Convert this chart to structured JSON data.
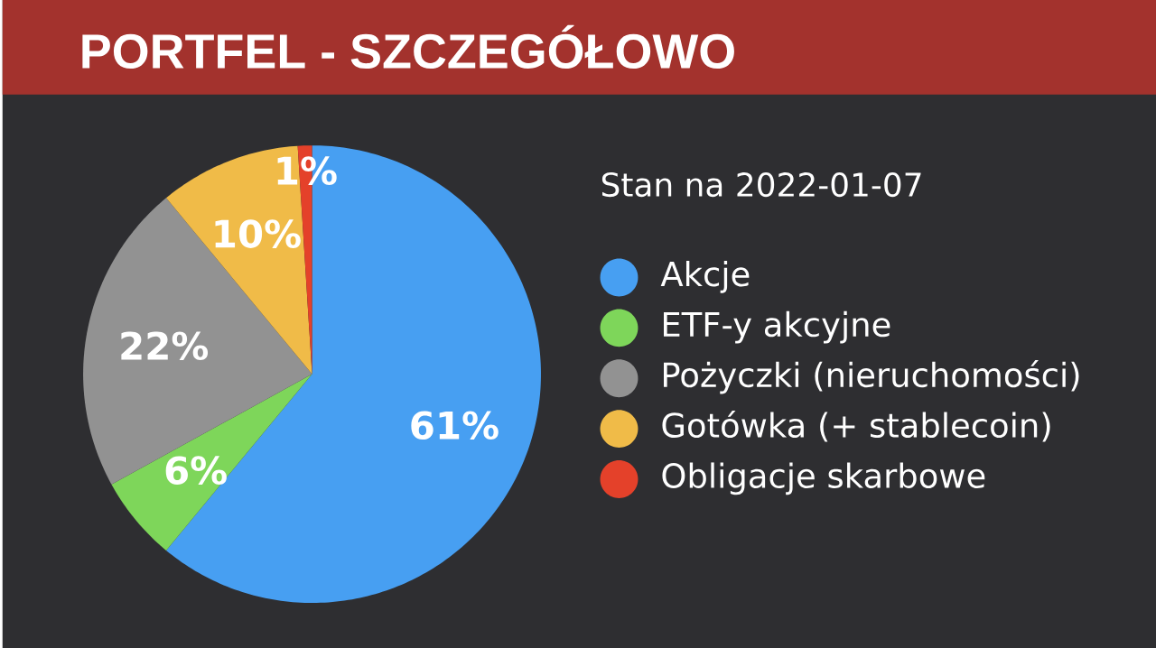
{
  "chart_data": {
    "type": "pie",
    "title": "PORTFEL - SZCZEGÓŁOWO",
    "subtitle": "Stan na 2022-01-07",
    "categories": [
      "Akcje",
      "ETF-y akcyjne",
      "Pożyczki (nieruchomości)",
      "Gotówka (+ stablecoin)",
      "Obligacje skarbowe"
    ],
    "values": [
      61,
      6,
      22,
      10,
      1
    ],
    "colors": [
      "#479ff2",
      "#7ed65a",
      "#929292",
      "#f0bb48",
      "#e4412a"
    ],
    "value_labels": [
      "61%",
      "6%",
      "22%",
      "10%",
      "1%"
    ],
    "legend": "right"
  }
}
